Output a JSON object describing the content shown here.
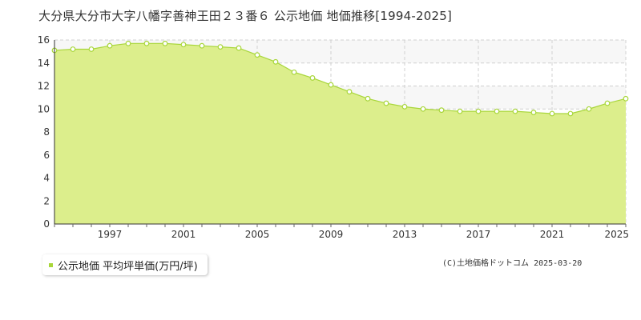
{
  "chart_data": {
    "type": "area",
    "title": "大分県大分市大字八幡字善神王田２３番６ 公示地価 地価推移[1994-2025]",
    "series": [
      {
        "name": "公示地価 平均坪単価(万円/坪)",
        "color": "#a8d63a",
        "fill": "#dcee8c",
        "x": [
          1994,
          1995,
          1996,
          1997,
          1998,
          1999,
          2000,
          2001,
          2002,
          2003,
          2004,
          2005,
          2006,
          2007,
          2008,
          2009,
          2010,
          2011,
          2012,
          2013,
          2014,
          2015,
          2016,
          2017,
          2018,
          2019,
          2020,
          2021,
          2022,
          2023,
          2024,
          2025
        ],
        "values": [
          15.1,
          15.2,
          15.2,
          15.5,
          15.7,
          15.7,
          15.7,
          15.6,
          15.5,
          15.4,
          15.3,
          14.7,
          14.1,
          13.2,
          12.7,
          12.1,
          11.5,
          10.9,
          10.5,
          10.2,
          10.0,
          9.9,
          9.8,
          9.8,
          9.8,
          9.8,
          9.7,
          9.6,
          9.6,
          10.0,
          10.5,
          10.9
        ]
      }
    ],
    "x_ticks": [
      "1997",
      "2001",
      "2005",
      "2009",
      "2013",
      "2017",
      "2021",
      "2025"
    ],
    "x_tick_values": [
      1997,
      2001,
      2005,
      2009,
      2013,
      2017,
      2021,
      2025
    ],
    "y_ticks": [
      "0",
      "2",
      "4",
      "6",
      "8",
      "10",
      "12",
      "14",
      "16"
    ],
    "xlim": [
      1994,
      2025
    ],
    "ylim": [
      0,
      16
    ],
    "grid": true,
    "legend_position": "bottom-left"
  },
  "legend": {
    "label": "公示地価 平均坪単価(万円/坪)"
  },
  "copyright": "(C)土地価格ドットコム 2025-03-20"
}
